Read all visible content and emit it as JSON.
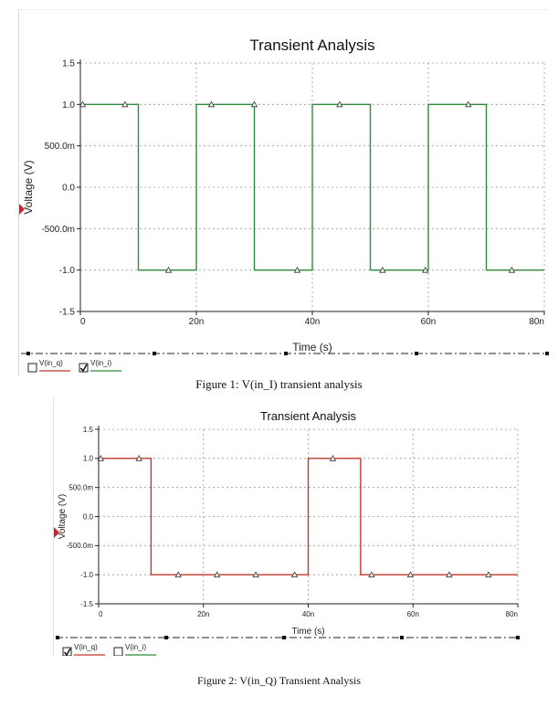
{
  "charts": [
    {
      "id": "fig1",
      "caption": "Figure 1: V(in_I) transient analysis",
      "legend": [
        {
          "label": "V(in_q)",
          "checked": false,
          "color": "#c0392b"
        },
        {
          "label": "V(in_i)",
          "checked": true,
          "color": "#2e8b3a"
        }
      ]
    },
    {
      "id": "fig2",
      "caption": "Figure 2: V(in_Q) Transient Analysis",
      "legend": [
        {
          "label": "V(in_q)",
          "checked": true,
          "color": "#c0392b"
        },
        {
          "label": "V(in_i)",
          "checked": false,
          "color": "#2e8b3a"
        }
      ]
    }
  ],
  "chart_data": [
    {
      "type": "line",
      "title": "Transient Analysis",
      "xlabel": "Time (s)",
      "ylabel": "Voltage (V)",
      "xlim": [
        0,
        80
      ],
      "ylim": [
        -1.5,
        1.5
      ],
      "x_unit": "ns",
      "xticks": [
        0,
        20,
        40,
        60,
        80
      ],
      "xtick_labels": [
        "0",
        "20n",
        "40n",
        "60n",
        "80n"
      ],
      "yticks": [
        1.5,
        1.0,
        0.5,
        0.0,
        -0.5,
        -1.0,
        -1.5
      ],
      "ytick_labels": [
        "1.5",
        "1.0",
        "500.0m",
        "0.0",
        "-500.0m",
        "-1.0",
        "-1.5"
      ],
      "grid": true,
      "series": [
        {
          "name": "V(in_i)",
          "color": "#2e8b3a",
          "x": [
            0,
            10,
            10,
            20,
            20,
            30,
            30,
            40,
            40,
            50,
            50,
            60,
            60,
            70,
            70,
            80
          ],
          "y": [
            1,
            1,
            -1,
            -1,
            1,
            1,
            -1,
            -1,
            1,
            1,
            -1,
            -1,
            1,
            1,
            -1,
            -1
          ],
          "marker_x": [
            0.4,
            7.7,
            15.2,
            22.6,
            30,
            37.4,
            44.7,
            52.1,
            59.5,
            66.9,
            74.4
          ],
          "marker_y": [
            1,
            1,
            -1,
            1,
            1,
            -1,
            1,
            -1,
            -1,
            1,
            -1
          ]
        }
      ]
    },
    {
      "type": "line",
      "title": "Transient Analysis",
      "xlabel": "Time (s)",
      "ylabel": "Voltage (V)",
      "xlim": [
        0,
        80
      ],
      "ylim": [
        -1.5,
        1.5
      ],
      "x_unit": "ns",
      "xticks": [
        0,
        20,
        40,
        60,
        80
      ],
      "xtick_labels": [
        "0",
        "20n",
        "40n",
        "60n",
        "80n"
      ],
      "yticks": [
        1.5,
        1.0,
        0.5,
        0.0,
        -0.5,
        -1.0,
        -1.5
      ],
      "ytick_labels": [
        "1.5",
        "1.0",
        "500.0m",
        "0.0",
        "-500.0m",
        "-1.0",
        "-1.5"
      ],
      "grid": true,
      "series": [
        {
          "name": "V(in_q)",
          "color": "#c0392b",
          "x": [
            0,
            10,
            10,
            40,
            40,
            50,
            50,
            80
          ],
          "y": [
            1,
            1,
            -1,
            -1,
            1,
            1,
            -1,
            -1
          ],
          "marker_x": [
            0.4,
            7.7,
            15.2,
            22.6,
            30,
            37.4,
            44.7,
            52.1,
            59.5,
            66.9,
            74.4
          ],
          "marker_y": [
            1,
            1,
            -1,
            -1,
            -1,
            -1,
            1,
            -1,
            -1,
            -1,
            -1
          ]
        }
      ]
    }
  ]
}
